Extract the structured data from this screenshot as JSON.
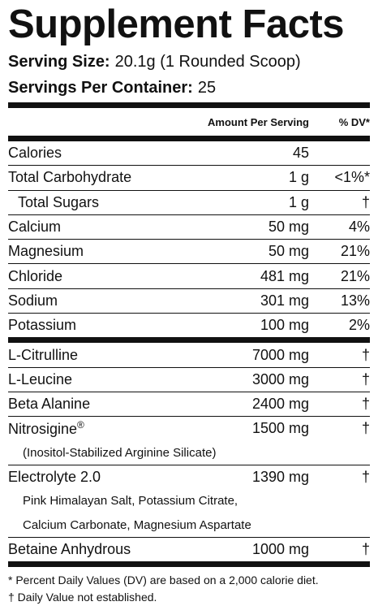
{
  "title": "Supplement Facts",
  "serving_size": {
    "label": "Serving Size:",
    "value": "20.1g (1 Rounded Scoop)"
  },
  "servings_per_container": {
    "label": "Servings Per Container:",
    "value": "25"
  },
  "header": {
    "amount": "Amount Per Serving",
    "dv": "% DV*"
  },
  "sections": [
    {
      "rows": [
        {
          "name": "Calories",
          "amount": "45"
        },
        {
          "name": "Total Carbohydrate",
          "amount": "1 g",
          "dv": "<1%*",
          "sub_rows": [
            {
              "name": "Total Sugars",
              "amount": "1 g",
              "dv": "†"
            }
          ]
        },
        {
          "name": "Calcium",
          "amount": "50 mg",
          "dv": "4%"
        },
        {
          "name": "Magnesium",
          "amount": "50 mg",
          "dv": "21%"
        },
        {
          "name": "Chloride",
          "amount": "481 mg",
          "dv": "21%"
        },
        {
          "name": "Sodium",
          "amount": "301 mg",
          "dv": "13%"
        },
        {
          "name": "Potassium",
          "amount": "100 mg",
          "dv": "2%"
        }
      ]
    },
    {
      "rows": [
        {
          "name": "L-Citrulline",
          "amount": "7000 mg",
          "dv": "†"
        },
        {
          "name": "L-Leucine",
          "amount": "3000 mg",
          "dv": "†"
        },
        {
          "name": "Beta Alanine",
          "amount": "2400 mg",
          "dv": "†"
        },
        {
          "name": "Nitrosigine",
          "mark": "®",
          "amount": "1500 mg",
          "dv": "†",
          "description": [
            "(Inositol-Stabilized Arginine Silicate)"
          ]
        },
        {
          "name": "Electrolyte 2.0",
          "amount": "1390 mg",
          "dv": "†",
          "description": [
            "Pink Himalayan Salt, Potassium Citrate,",
            "Calcium Carbonate, Magnesium Aspartate"
          ]
        },
        {
          "name": "Betaine Anhydrous",
          "amount": "1000 mg",
          "dv": "†"
        }
      ]
    }
  ],
  "footnotes": [
    "* Percent Daily Values (DV) are based on a 2,000 calorie diet.",
    "† Daily Value not established."
  ]
}
